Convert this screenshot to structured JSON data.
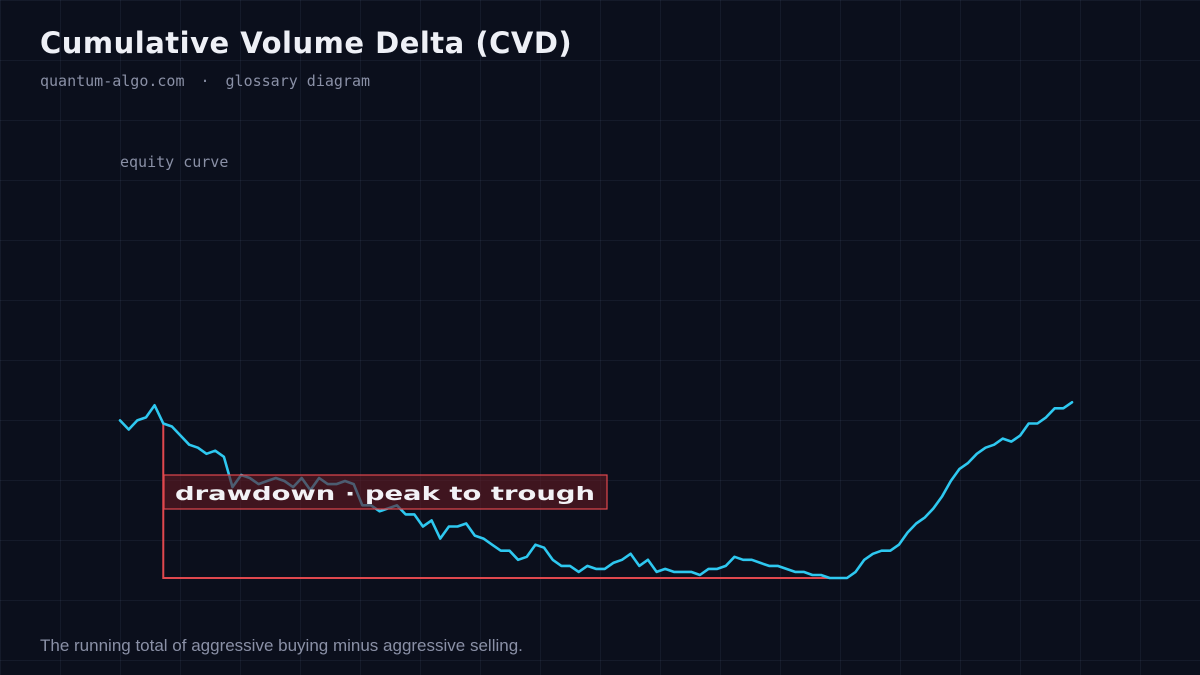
{
  "title": "Cumulative Volume Delta (CVD)",
  "subtitle": {
    "site": "quantum-algo.com",
    "separator": "·",
    "kind": "glossary diagram"
  },
  "caption": "The running total of aggressive buying minus aggressive selling.",
  "colors": {
    "background": "#0b0f1c",
    "curve": "#2ec8f0",
    "drawdown": "#e0484e"
  },
  "diagram": {
    "series_label": "equity curve",
    "annotation_label": "drawdown · peak to trough",
    "curve_values": [
      52,
      49,
      52,
      53,
      57,
      51,
      50,
      47,
      44,
      43,
      41,
      42,
      40,
      30,
      34,
      33,
      31,
      32,
      33,
      32,
      30,
      33,
      29,
      33,
      31,
      31,
      32,
      31,
      24,
      24,
      22,
      23,
      24,
      21,
      21,
      17,
      19,
      13,
      17,
      17,
      18,
      14,
      13,
      11,
      9,
      9,
      6,
      7,
      11,
      10,
      6,
      4,
      4,
      2,
      4,
      3,
      3,
      5,
      6,
      8,
      4,
      6,
      2,
      3,
      2,
      2,
      2,
      1,
      3,
      3,
      4,
      7,
      6,
      6,
      5,
      4,
      4,
      3,
      2,
      2,
      1,
      1,
      0,
      0,
      0,
      2,
      6,
      8,
      9,
      9,
      11,
      15,
      18,
      20,
      23,
      27,
      32,
      36,
      38,
      41,
      43,
      44,
      46,
      45,
      47,
      51,
      51,
      53,
      56,
      56,
      58
    ],
    "peak_index": 5,
    "trough_index": 84
  }
}
